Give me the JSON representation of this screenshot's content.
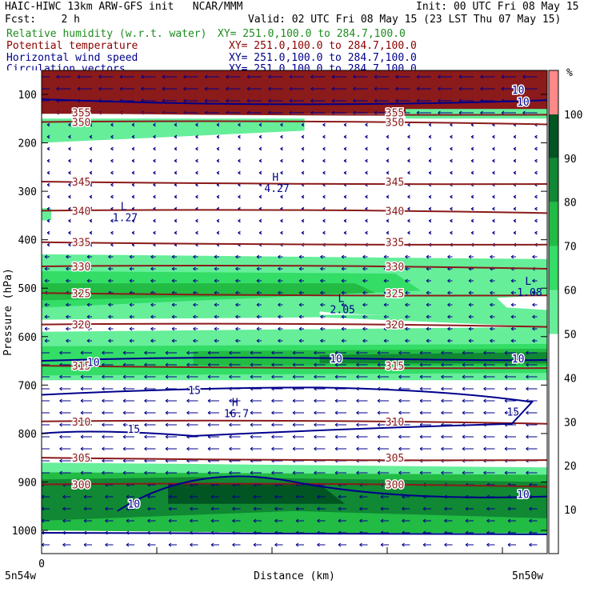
{
  "header": {
    "title_left": "HAIC-HIWC 13km ARW-GFS init   NCAR/MMM",
    "init": "Init: 00 UTC Fri 08 May 15",
    "fcst": "Fcst:    2 h",
    "valid": "Valid: 02 UTC Fri 08 May 15 (23 LST Thu 07 May 15)",
    "fields": [
      {
        "name": "Relative humidity (w.r.t. water)",
        "xy": "XY= 251.0,100.0 to 284.7,100.0",
        "color": "#1e8c1e"
      },
      {
        "name": "Potential temperature",
        "xy": "XY= 251.0,100.0 to 284.7,100.0",
        "color": "#8b0000"
      },
      {
        "name": "Horizontal wind speed",
        "xy": "XY= 251.0,100.0 to 284.7,100.0",
        "color": "#00008b"
      },
      {
        "name": "Circulation vectors",
        "xy": "XY= 251.0,100.0 to 284.7,100.0",
        "color": "#00008b"
      }
    ]
  },
  "chart_data": {
    "type": "heatmap",
    "xlabel": "Distance (km)",
    "ylabel": "Pressure (hPa)",
    "x_tick_first": "0",
    "x_left_label": "5n54w",
    "x_right_label": "5n50w",
    "y_ticks": [
      100,
      200,
      300,
      400,
      500,
      600,
      700,
      800,
      900,
      1000
    ],
    "ylim": [
      1050,
      50
    ],
    "colorbar": {
      "unit": "%",
      "ticks": [
        10,
        20,
        30,
        40,
        50,
        60,
        70,
        80,
        90,
        100
      ],
      "colors": [
        "#00ff80",
        "#66e89a",
        "#33e06a",
        "#22cc55",
        "#119944",
        "#006622",
        "#ff8888"
      ]
    },
    "humidity_layers": [
      {
        "p_top": 140,
        "p_bot": 200,
        "level": "50-60"
      },
      {
        "p_top": 435,
        "p_bot": 560,
        "level": "60-90"
      },
      {
        "p_top": 580,
        "p_bot": 690,
        "level": "50-90"
      },
      {
        "p_top": 855,
        "p_bot": 1010,
        "level": "60-100"
      }
    ],
    "theta_contours": [
      {
        "value": "350",
        "p": 157
      },
      {
        "value": "345",
        "p": 280
      },
      {
        "value": "340",
        "p": 340
      },
      {
        "value": "335",
        "p": 405
      },
      {
        "value": "330",
        "p": 455
      },
      {
        "value": "325",
        "p": 510
      },
      {
        "value": "320",
        "p": 575
      },
      {
        "value": "315",
        "p": 660
      },
      {
        "value": "310",
        "p": 775
      },
      {
        "value": "305",
        "p": 850
      },
      {
        "value": "300",
        "p": 905
      },
      {
        "value": "355",
        "p": 137
      }
    ],
    "wind_labels": [
      {
        "text": "10",
        "x": 0.09,
        "p": 652
      },
      {
        "text": "10",
        "x": 0.57,
        "p": 645
      },
      {
        "text": "10",
        "x": 0.93,
        "p": 645
      },
      {
        "text": "15",
        "x": 0.29,
        "p": 710
      },
      {
        "text": "15",
        "x": 0.92,
        "p": 755
      },
      {
        "text": "15",
        "x": 0.17,
        "p": 790
      },
      {
        "text": "10",
        "x": 0.17,
        "p": 945
      },
      {
        "text": "10",
        "x": 0.94,
        "p": 925
      },
      {
        "text": "10",
        "x": 0.94,
        "p": 115
      },
      {
        "text": "10",
        "x": 0.93,
        "p": 90
      }
    ],
    "extrema": [
      {
        "mark": "H",
        "value": "4.27",
        "x": 0.45,
        "p": 285
      },
      {
        "mark": "L",
        "value": "1.27",
        "x": 0.15,
        "p": 345
      },
      {
        "mark": "L",
        "value": "2.05",
        "x": 0.58,
        "p": 535
      },
      {
        "mark": "L",
        "value": "1.08",
        "x": 0.95,
        "p": 500
      },
      {
        "mark": "H",
        "value": "16.7",
        "x": 0.37,
        "p": 750
      }
    ]
  }
}
